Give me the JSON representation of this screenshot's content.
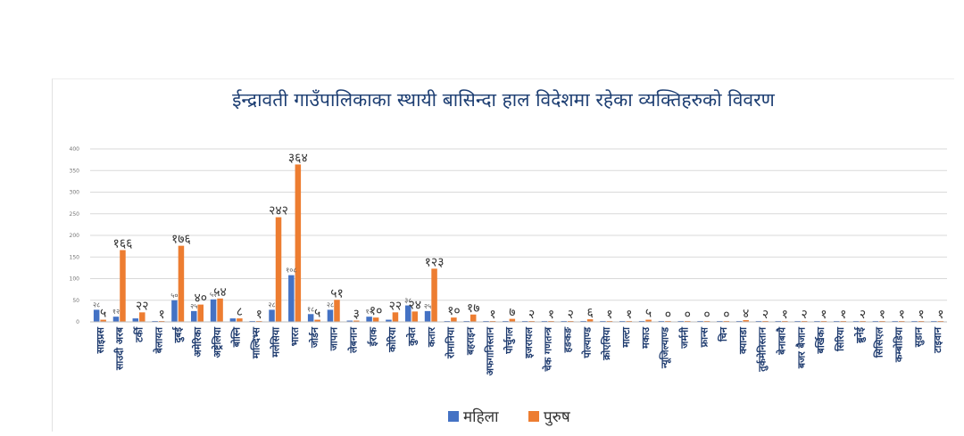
{
  "colors": {
    "series_0": "#4472c4",
    "series_1": "#ed7d31",
    "grid": "#d9d9d9",
    "title": "#1e3f73",
    "category": "#1d3a6e"
  },
  "chart_data": {
    "type": "bar",
    "title": "ईन्द्रावती गाउँपालिकाका स्थायी बासिन्दा हाल विदेशमा रहेका व्यक्तिहरुको विवरण",
    "xlabel": "",
    "ylabel": "",
    "ylim": [
      0,
      400
    ],
    "yticks": [
      0,
      50,
      100,
      150,
      200,
      250,
      300,
      350,
      400
    ],
    "grid": true,
    "legend": "bottom-center",
    "categories": [
      "साइप्रस",
      "साउदी अरब",
      "टर्की",
      "बेलायत",
      "दुबई",
      "अमेरिका",
      "अष्ट्रेलिया",
      "बोस्नि",
      "माल्दिभ्स",
      "मलेसिया",
      "भारत",
      "जोर्डन",
      "जापान",
      "लेबनान",
      "ईराक",
      "कोरिया",
      "कुवेत",
      "कतार",
      "रोमानिया",
      "बहराइन",
      "अफगानिस्तान",
      "पोर्चुगल",
      "इजरायल",
      "चेक गणतन्त्र",
      "हङकङ",
      "पोल्याण्ड",
      "क्रोएसिया",
      "माल्टा",
      "मकाउ",
      "न्यूजिल्याण्ड",
      "जर्मनी",
      "फ्रान्स",
      "चिन",
      "क्यानडा",
      "तुर्कमेनिस्तान",
      "बेनाबायै",
      "बजर बैजान",
      "बर्खिका",
      "सिरिया",
      "ब्रुनेई",
      "सिसिएल",
      "कम्बोडिया",
      "सुडान",
      "टाइवान"
    ],
    "series": [
      {
        "name": "महिला",
        "values": [
          28,
          12,
          8,
          1,
          50,
          25,
          52,
          8,
          1,
          28,
          108,
          18,
          28,
          3,
          12,
          5,
          38,
          25,
          2,
          0,
          0,
          0,
          1,
          1,
          1,
          1,
          1,
          0,
          0,
          0,
          0,
          0,
          0,
          0,
          0,
          0,
          0,
          0,
          0,
          0,
          0,
          0,
          0,
          0
        ],
        "labels": [
          "२८",
          "१२",
          "",
          "",
          "५०",
          "२५",
          "५२",
          "",
          "",
          "२८",
          "१०८",
          "१८",
          "२८",
          "",
          "१२",
          "",
          "३८",
          "२५",
          "",
          "",
          "",
          "",
          "",
          "",
          "",
          "",
          "",
          "",
          "",
          "",
          "",
          "",
          "",
          "",
          "",
          "",
          "",
          "",
          "",
          "",
          "",
          "",
          "",
          ""
        ]
      },
      {
        "name": "पुरुष",
        "values": [
          5,
          166,
          22,
          1,
          176,
          40,
          54,
          8,
          1,
          242,
          364,
          5,
          51,
          3,
          10,
          22,
          24,
          123,
          10,
          17,
          1,
          7,
          2,
          1,
          2,
          6,
          1,
          1,
          5,
          0,
          0,
          0,
          0,
          4,
          2,
          1,
          2,
          1,
          1,
          2,
          1,
          1,
          1,
          1
        ],
        "labels": [
          "५",
          "१६६",
          "२२",
          "१",
          "१७६",
          "४०",
          "५४",
          "८",
          "१",
          "२४२",
          "३६४",
          "५",
          "५१",
          "३",
          "१०",
          "२२",
          "२४",
          "१२३",
          "१०",
          "१७",
          "१",
          "७",
          "२",
          "१",
          "२",
          "६",
          "१",
          "१",
          "५",
          "०",
          "०",
          "०",
          "०",
          "४",
          "२",
          "१",
          "२",
          "१",
          "१",
          "२",
          "१",
          "१",
          "१",
          "१"
        ]
      }
    ]
  }
}
